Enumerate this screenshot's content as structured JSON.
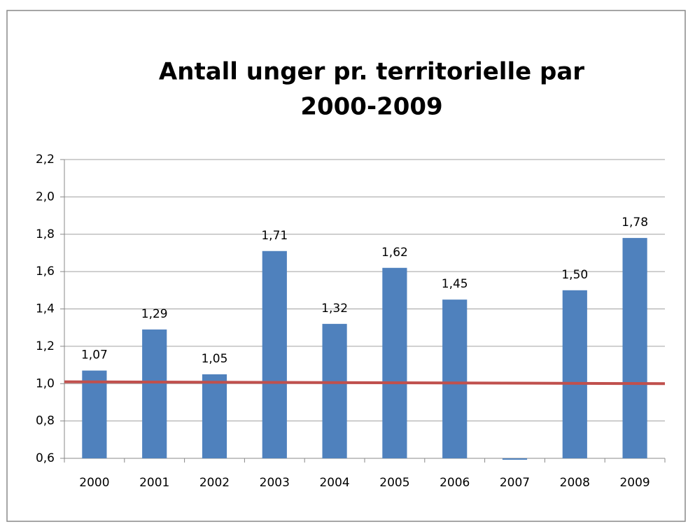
{
  "chart_data": {
    "type": "bar",
    "title": [
      "Antall unger pr. territorielle par",
      "2000-2009"
    ],
    "categories": [
      "2000",
      "2001",
      "2002",
      "2003",
      "2004",
      "2005",
      "2006",
      "2007",
      "2008",
      "2009"
    ],
    "values": [
      1.07,
      1.29,
      1.05,
      1.71,
      1.32,
      1.62,
      1.45,
      0.6,
      1.5,
      1.78
    ],
    "value_labels": [
      "1,07",
      "1,29",
      "1,05",
      "1,71",
      "1,32",
      "1,62",
      "1,45",
      null,
      "1,50",
      "1,78"
    ],
    "color": "#4f81bd",
    "ylim": [
      0.6,
      2.2
    ],
    "yticks": [
      {
        "value": 0.6,
        "label": "0,6"
      },
      {
        "value": 0.8,
        "label": "0,8"
      },
      {
        "value": 1.0,
        "label": "1,0"
      },
      {
        "value": 1.2,
        "label": "1,2"
      },
      {
        "value": 1.4,
        "label": "1,4"
      },
      {
        "value": 1.6,
        "label": "1,6"
      },
      {
        "value": 1.8,
        "label": "1,8"
      },
      {
        "value": 2.0,
        "label": "2,0"
      },
      {
        "value": 2.2,
        "label": "2,2"
      }
    ],
    "grid": true,
    "reference_line": {
      "values": [
        1.01,
        1.0
      ],
      "color": "#c0504d"
    }
  }
}
